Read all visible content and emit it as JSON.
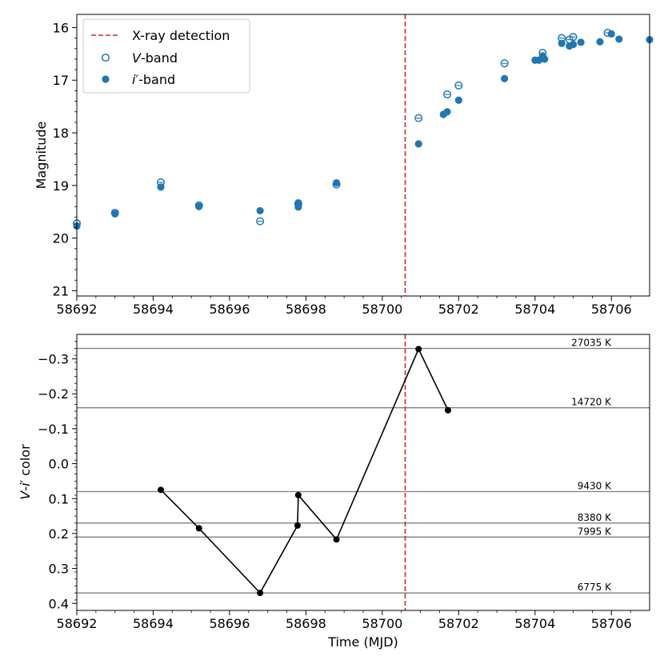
{
  "colors": {
    "marker": "#1f77b4",
    "detection": "#d62728",
    "temperature_line": "#808080",
    "color_curve": "#000000"
  },
  "chart_data": [
    {
      "type": "scatter",
      "title": "",
      "xlabel": "",
      "ylabel": "Magnitude",
      "xlim": [
        58692,
        58707
      ],
      "ylim": [
        21.1,
        15.75
      ],
      "y_inverted": true,
      "x_tick_labels": [
        "58692",
        "58694",
        "58696",
        "58698",
        "58700",
        "58702",
        "58704",
        "58706"
      ],
      "y_tick_labels": [
        "16",
        "17",
        "18",
        "19",
        "20",
        "21"
      ],
      "xray_detection_mjd": 58700.6,
      "legend": {
        "placement": "top-left",
        "entries": [
          {
            "id": "xray",
            "pre": "X-ray detection",
            "ital": "",
            "post": ""
          },
          {
            "id": "v",
            "pre": "",
            "ital": "V",
            "post": "-band"
          },
          {
            "id": "i",
            "pre": "",
            "ital": "i",
            "post": "′-band"
          }
        ]
      },
      "series": [
        {
          "name": "V-band",
          "marker": "open-circle-with-errorbar",
          "points": [
            [
              58692.0,
              19.72
            ],
            [
              58693.0,
              19.52
            ],
            [
              58694.2,
              18.94
            ],
            [
              58695.2,
              19.38
            ],
            [
              58696.8,
              19.68
            ],
            [
              58697.8,
              19.35
            ],
            [
              58698.8,
              18.98
            ],
            [
              58700.95,
              17.72
            ],
            [
              58701.7,
              17.27
            ],
            [
              58702.0,
              17.1
            ],
            [
              58703.2,
              16.68
            ],
            [
              58704.2,
              16.48
            ],
            [
              58704.7,
              16.2
            ],
            [
              58704.9,
              16.23
            ],
            [
              58705.0,
              16.18
            ],
            [
              58705.9,
              16.1
            ]
          ]
        },
        {
          "name": "i'-band",
          "marker": "filled-circle",
          "points": [
            [
              58692.0,
              19.77
            ],
            [
              58693.0,
              19.54
            ],
            [
              58694.2,
              19.03
            ],
            [
              58695.2,
              19.4
            ],
            [
              58696.8,
              19.48
            ],
            [
              58697.8,
              19.33
            ],
            [
              58697.8,
              19.41
            ],
            [
              58698.8,
              18.95
            ],
            [
              58700.95,
              18.21
            ],
            [
              58701.6,
              17.65
            ],
            [
              58701.7,
              17.6
            ],
            [
              58702.0,
              17.38
            ],
            [
              58703.2,
              16.97
            ],
            [
              58704.0,
              16.62
            ],
            [
              58704.1,
              16.62
            ],
            [
              58704.2,
              16.55
            ],
            [
              58704.25,
              16.6
            ],
            [
              58704.7,
              16.3
            ],
            [
              58704.9,
              16.35
            ],
            [
              58705.0,
              16.32
            ],
            [
              58705.2,
              16.28
            ],
            [
              58705.7,
              16.27
            ],
            [
              58706.2,
              16.22
            ],
            [
              58706.0,
              16.12
            ],
            [
              58707.0,
              16.23
            ]
          ]
        }
      ]
    },
    {
      "type": "line",
      "title": "",
      "xlabel": "Time (MJD)",
      "ylabel_pre": "V",
      "ylabel_mid": "-",
      "ylabel_ital": "i",
      "ylabel_post": "′ color",
      "xlim": [
        58692,
        58707
      ],
      "ylim": [
        0.42,
        -0.37
      ],
      "y_inverted": true,
      "x_tick_labels": [
        "58692",
        "58694",
        "58696",
        "58698",
        "58700",
        "58702",
        "58704",
        "58706"
      ],
      "y_ticks": [
        -0.3,
        -0.2,
        -0.1,
        0.0,
        0.1,
        0.2,
        0.3,
        0.4
      ],
      "y_tick_labels": [
        "−0.3",
        "−0.2",
        "−0.1",
        "0.0",
        "0.1",
        "0.2",
        "0.3",
        "0.4"
      ],
      "xray_detection_mjd": 58700.6,
      "temperature_lines": [
        {
          "value": -0.33,
          "label": "27035 K"
        },
        {
          "value": -0.16,
          "label": "14720 K"
        },
        {
          "value": 0.08,
          "label": "9430 K"
        },
        {
          "value": 0.17,
          "label": "8380 K"
        },
        {
          "value": 0.21,
          "label": "7995 K"
        },
        {
          "value": 0.37,
          "label": "6775 K"
        }
      ],
      "series": [
        {
          "name": "V-i' color",
          "x": [
            58694.2,
            58695.2,
            58696.8,
            58697.78,
            58697.8,
            58698.8,
            58700.95,
            58701.72
          ],
          "y": [
            0.075,
            0.185,
            0.37,
            0.177,
            0.09,
            0.217,
            -0.328,
            -0.153
          ]
        }
      ]
    }
  ]
}
